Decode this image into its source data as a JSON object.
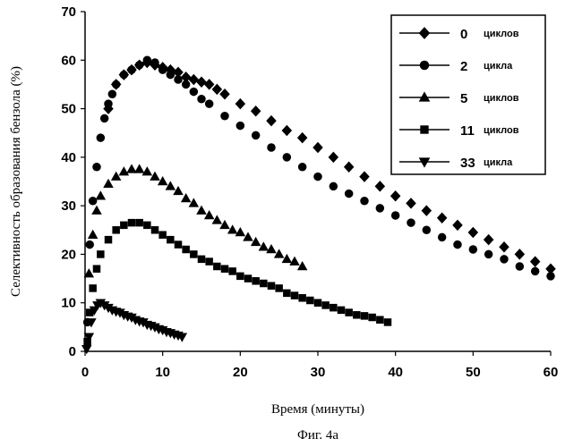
{
  "chart_data": {
    "type": "scatter",
    "xlabel": "Время (минуты)",
    "ylabel": "Селективность образования бензола (%)",
    "caption": "Фиг. 4a",
    "xlim": [
      0,
      60
    ],
    "ylim": [
      0,
      70
    ],
    "xticks": [
      "0",
      "10",
      "20",
      "30",
      "40",
      "50",
      "60"
    ],
    "yticks": [
      "0",
      "10",
      "20",
      "30",
      "40",
      "50",
      "60",
      "70"
    ],
    "grid": false,
    "legend": {
      "position": "top-right"
    },
    "series": [
      {
        "name": "0",
        "unit": "циклов",
        "marker": "diamond",
        "x": [
          3,
          4,
          5,
          6,
          7,
          8,
          9,
          10,
          11,
          12,
          13,
          14,
          15,
          16,
          17,
          18,
          20,
          22,
          24,
          26,
          28,
          30,
          32,
          34,
          36,
          38,
          40,
          42,
          44,
          46,
          48,
          50,
          52,
          54,
          56,
          58,
          60
        ],
        "y": [
          50,
          55,
          57,
          58,
          59,
          59.5,
          59,
          58.5,
          58,
          57.5,
          56.5,
          56,
          55.5,
          55,
          54,
          53,
          51,
          49.5,
          47.5,
          45.5,
          44,
          42,
          40,
          38,
          36,
          34,
          32,
          30.5,
          29,
          27.5,
          26,
          24.5,
          23,
          21.5,
          20,
          18.5,
          17
        ]
      },
      {
        "name": "2",
        "unit": "цикла",
        "marker": "circle",
        "x": [
          0.3,
          0.6,
          1,
          1.5,
          2,
          2.5,
          3,
          3.5,
          4,
          5,
          6,
          7,
          8,
          9,
          10,
          11,
          12,
          13,
          14,
          15,
          16,
          18,
          20,
          22,
          24,
          26,
          28,
          30,
          32,
          34,
          36,
          38,
          40,
          42,
          44,
          46,
          48,
          50,
          52,
          54,
          56,
          58,
          60
        ],
        "y": [
          6,
          22,
          31,
          38,
          44,
          48,
          51,
          53,
          55,
          57,
          58,
          59,
          60,
          59.5,
          58,
          57,
          56,
          55,
          53.5,
          52,
          51,
          48.5,
          46.5,
          44.5,
          42,
          40,
          38,
          36,
          34,
          32.5,
          31,
          29.5,
          28,
          26.5,
          25,
          23.5,
          22,
          21,
          20,
          19,
          17.5,
          16.5,
          15.5
        ]
      },
      {
        "name": "5",
        "unit": "циклов",
        "marker": "triangle",
        "x": [
          0.5,
          1,
          1.5,
          2,
          3,
          4,
          5,
          6,
          7,
          8,
          9,
          10,
          11,
          12,
          13,
          14,
          15,
          16,
          17,
          18,
          19,
          20,
          21,
          22,
          23,
          24,
          25,
          26,
          27,
          28
        ],
        "y": [
          16,
          24,
          29,
          32,
          34.5,
          36,
          37,
          37.5,
          37.5,
          37,
          36,
          35,
          34,
          33,
          31.5,
          30.5,
          29,
          28,
          27,
          26,
          25,
          24.5,
          23.5,
          22.5,
          21.5,
          21,
          20,
          19,
          18.5,
          17.5
        ]
      },
      {
        "name": "11",
        "unit": "циклов",
        "marker": "square",
        "x": [
          0.3,
          0.6,
          1,
          1.5,
          2,
          3,
          4,
          5,
          6,
          7,
          8,
          9,
          10,
          11,
          12,
          13,
          14,
          15,
          16,
          17,
          18,
          19,
          20,
          21,
          22,
          23,
          24,
          25,
          26,
          27,
          28,
          29,
          30,
          31,
          32,
          33,
          34,
          35,
          36,
          37,
          38,
          39
        ],
        "y": [
          2,
          8,
          13,
          17,
          20,
          23,
          25,
          26,
          26.5,
          26.5,
          26,
          25,
          24,
          23,
          22,
          21,
          20,
          19,
          18.5,
          17.5,
          17,
          16.5,
          15.5,
          15,
          14.5,
          14,
          13.5,
          13,
          12,
          11.5,
          11,
          10.5,
          10,
          9.5,
          9,
          8.5,
          8,
          7.5,
          7.3,
          7,
          6.5,
          6
        ]
      },
      {
        "name": "33",
        "unit": "цикла",
        "marker": "triangle-down",
        "x": [
          0.2,
          0.5,
          0.8,
          1.2,
          1.6,
          2,
          2.5,
          3,
          3.5,
          4,
          4.5,
          5,
          5.5,
          6,
          6.5,
          7,
          7.5,
          8,
          8.5,
          9,
          9.5,
          10,
          10.5,
          11,
          11.5,
          12,
          12.5
        ],
        "y": [
          0.5,
          3,
          6,
          8.5,
          9.5,
          10,
          9.5,
          9,
          8.5,
          8.2,
          8,
          7.5,
          7.2,
          7,
          6.5,
          6.2,
          6,
          5.5,
          5.3,
          5,
          4.6,
          4.4,
          4,
          3.8,
          3.5,
          3.3,
          3
        ]
      }
    ]
  }
}
